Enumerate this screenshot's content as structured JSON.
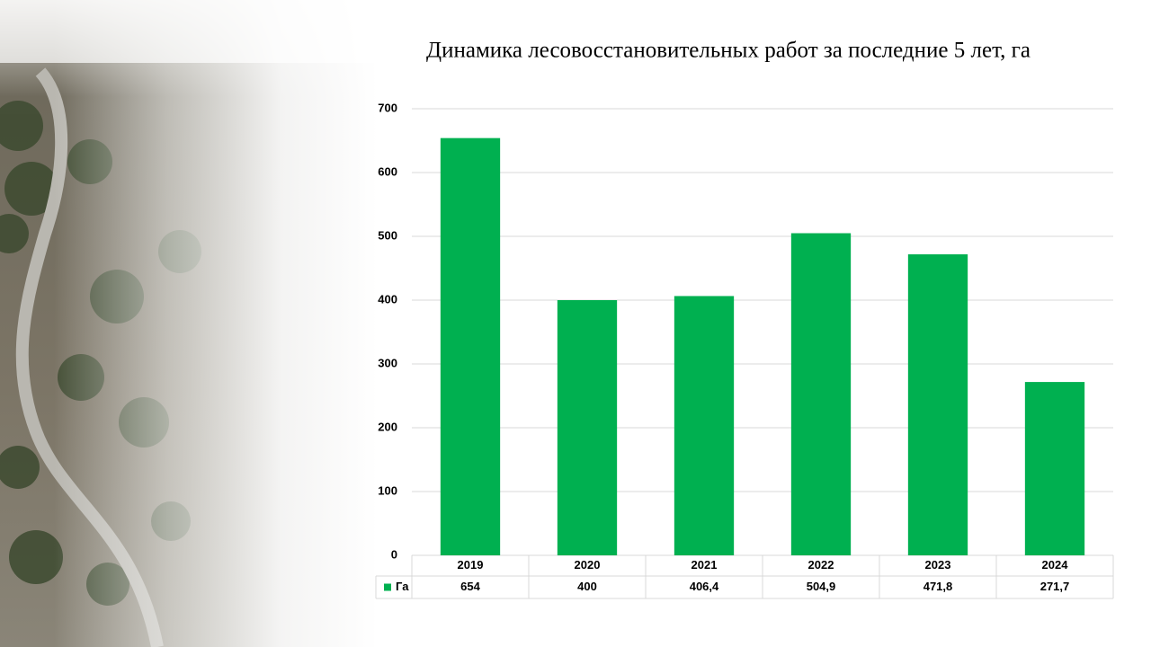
{
  "chart_data": {
    "type": "bar",
    "title": "Динамика лесовосстановительных работ за последние 5 лет, га",
    "categories": [
      "2019",
      "2020",
      "2021",
      "2022",
      "2023",
      "2024"
    ],
    "series": [
      {
        "name": "Га",
        "color": "#00b050",
        "values": [
          654,
          400,
          406.4,
          504.9,
          471.8,
          271.7
        ],
        "value_labels": [
          "654",
          "400",
          "406,4",
          "504,9",
          "471,8",
          "271,7"
        ]
      }
    ],
    "ylim": [
      0,
      700
    ],
    "yticks": [
      0,
      100,
      200,
      300,
      400,
      500,
      600,
      700
    ],
    "grid": true,
    "data_table": true
  }
}
